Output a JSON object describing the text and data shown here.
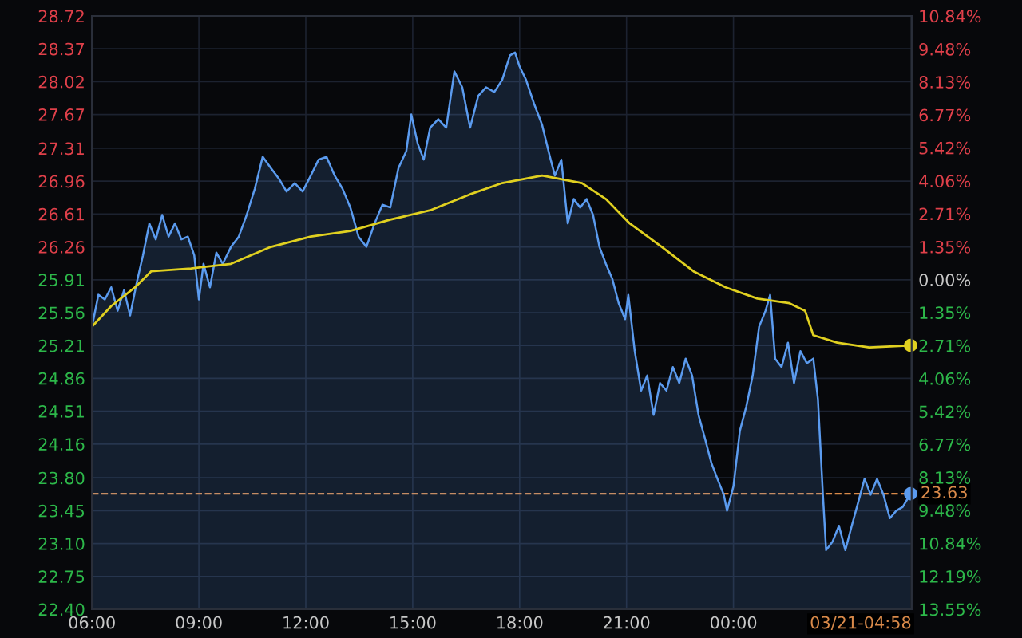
{
  "chart_data": {
    "type": "line",
    "x": [
      6.0,
      6.18,
      6.36,
      6.54,
      6.72,
      6.9,
      7.07,
      7.25,
      7.43,
      7.61,
      7.79,
      7.97,
      8.15,
      8.33,
      8.51,
      8.69,
      8.87,
      9.0,
      9.13,
      9.31,
      9.49,
      9.67,
      9.9,
      10.12,
      10.34,
      10.57,
      10.79,
      11.02,
      11.24,
      11.46,
      11.69,
      11.91,
      12.14,
      12.36,
      12.58,
      12.81,
      13.03,
      13.25,
      13.48,
      13.7,
      13.93,
      14.15,
      14.37,
      14.6,
      14.82,
      14.96,
      15.14,
      15.31,
      15.49,
      15.72,
      15.94,
      16.17,
      16.39,
      16.61,
      16.84,
      17.06,
      17.29,
      17.51,
      17.73,
      17.87,
      18.0,
      18.18,
      18.4,
      18.63,
      18.85,
      18.99,
      19.17,
      19.35,
      19.52,
      19.7,
      19.88,
      20.06,
      20.24,
      20.42,
      20.6,
      20.78,
      20.96,
      21.05,
      21.23,
      21.41,
      21.58,
      21.76,
      21.94,
      22.12,
      22.3,
      22.48,
      22.66,
      22.84,
      23.02,
      23.2,
      23.38,
      23.55,
      23.73,
      23.82,
      24.0,
      24.18,
      24.36,
      24.54,
      24.72,
      24.9,
      25.03,
      25.17,
      25.35,
      25.53,
      25.7,
      25.88,
      26.06,
      26.24,
      26.37,
      26.51,
      26.6,
      26.78,
      26.96,
      27.14,
      27.32,
      27.5,
      27.68,
      27.85,
      28.03,
      28.21,
      28.39,
      28.57,
      28.75,
      28.97
    ],
    "series": [
      {
        "type": "area",
        "color": "#5b9bef",
        "values": [
          25.41,
          25.75,
          25.7,
          25.83,
          25.58,
          25.8,
          25.53,
          25.87,
          26.17,
          26.51,
          26.34,
          26.6,
          26.37,
          26.51,
          26.34,
          26.37,
          26.17,
          25.7,
          26.08,
          25.83,
          26.2,
          26.08,
          26.26,
          26.37,
          26.6,
          26.88,
          27.22,
          27.1,
          26.99,
          26.85,
          26.94,
          26.85,
          27.02,
          27.19,
          27.22,
          27.02,
          26.88,
          26.68,
          26.37,
          26.26,
          26.51,
          26.71,
          26.68,
          27.1,
          27.28,
          27.67,
          27.36,
          27.19,
          27.53,
          27.62,
          27.53,
          28.13,
          27.96,
          27.53,
          27.87,
          27.96,
          27.91,
          28.04,
          28.3,
          28.33,
          28.18,
          28.04,
          27.79,
          27.56,
          27.22,
          27.02,
          27.19,
          26.51,
          26.77,
          26.68,
          26.77,
          26.6,
          26.26,
          26.08,
          25.92,
          25.66,
          25.49,
          25.75,
          25.15,
          24.73,
          24.89,
          24.47,
          24.81,
          24.73,
          24.98,
          24.81,
          25.07,
          24.89,
          24.47,
          24.22,
          23.96,
          23.79,
          23.62,
          23.45,
          23.71,
          24.3,
          24.56,
          24.89,
          25.41,
          25.58,
          25.75,
          25.07,
          24.98,
          25.24,
          24.81,
          25.15,
          25.02,
          25.07,
          24.64,
          23.62,
          23.03,
          23.12,
          23.29,
          23.03,
          23.29,
          23.54,
          23.79,
          23.62,
          23.79,
          23.62,
          23.37,
          23.45,
          23.49,
          23.63
        ]
      },
      {
        "color": "#e0d020",
        "x": [
          6.0,
          6.54,
          7.21,
          7.66,
          8.78,
          9.9,
          11.02,
          12.14,
          13.25,
          14.37,
          15.49,
          16.61,
          17.51,
          18.63,
          19.75,
          20.42,
          21.09,
          21.99,
          22.88,
          23.78,
          24.67,
          25.57,
          26.01,
          26.24,
          26.91,
          27.81,
          28.97
        ],
        "values": [
          25.41,
          25.63,
          25.83,
          26.0,
          26.03,
          26.08,
          26.26,
          26.37,
          26.43,
          26.55,
          26.65,
          26.82,
          26.94,
          27.02,
          26.94,
          26.77,
          26.51,
          26.26,
          26.0,
          25.83,
          25.71,
          25.66,
          25.58,
          25.32,
          25.24,
          25.19,
          25.21
        ]
      }
    ],
    "xlim": [
      6,
      29
    ],
    "xticks": [
      {
        "value": 6,
        "label": "06:00"
      },
      {
        "value": 9,
        "label": "09:00"
      },
      {
        "value": 12,
        "label": "12:00"
      },
      {
        "value": 15,
        "label": "15:00"
      },
      {
        "value": 18,
        "label": "18:00"
      },
      {
        "value": 21,
        "label": "21:00"
      },
      {
        "value": 24,
        "label": "00:00"
      }
    ],
    "ylim": [
      22.4,
      28.72
    ],
    "yticks": [
      {
        "value": 22.4,
        "label": "22.40"
      },
      {
        "value": 22.75,
        "label": "22.75"
      },
      {
        "value": 23.1,
        "label": "23.10"
      },
      {
        "value": 23.45,
        "label": "23.45"
      },
      {
        "value": 23.8,
        "label": "23.80"
      },
      {
        "value": 24.16,
        "label": "24.16"
      },
      {
        "value": 24.51,
        "label": "24.51"
      },
      {
        "value": 24.86,
        "label": "24.86"
      },
      {
        "value": 25.21,
        "label": "25.21"
      },
      {
        "value": 25.56,
        "label": "25.56"
      },
      {
        "value": 25.91,
        "label": "25.91"
      },
      {
        "value": 26.26,
        "label": "26.26"
      },
      {
        "value": 26.61,
        "label": "26.61"
      },
      {
        "value": 26.96,
        "label": "26.96"
      },
      {
        "value": 27.31,
        "label": "27.31"
      },
      {
        "value": 27.67,
        "label": "27.67"
      },
      {
        "value": 28.02,
        "label": "28.02"
      },
      {
        "value": 28.37,
        "label": "28.37"
      },
      {
        "value": 28.72,
        "label": "28.72"
      }
    ],
    "y2lim": [
      -13.55,
      10.84
    ],
    "y2ticks": [
      {
        "value": -13.55,
        "label": "13.55%"
      },
      {
        "value": -12.19,
        "label": "12.19%"
      },
      {
        "value": -10.84,
        "label": "10.84%"
      },
      {
        "value": -9.48,
        "label": "9.48%"
      },
      {
        "value": -8.13,
        "label": "8.13%"
      },
      {
        "value": -6.77,
        "label": "6.77%"
      },
      {
        "value": -5.42,
        "label": "5.42%"
      },
      {
        "value": -4.06,
        "label": "4.06%"
      },
      {
        "value": -2.71,
        "label": "2.71%"
      },
      {
        "value": -1.35,
        "label": "1.35%"
      },
      {
        "value": 0,
        "label": "0.00%"
      },
      {
        "value": 1.35,
        "label": "1.35%"
      },
      {
        "value": 2.71,
        "label": "2.71%"
      },
      {
        "value": 4.06,
        "label": "4.06%"
      },
      {
        "value": 5.42,
        "label": "5.42%"
      },
      {
        "value": 6.77,
        "label": "6.77%"
      },
      {
        "value": 8.13,
        "label": "8.13%"
      },
      {
        "value": 9.48,
        "label": "9.48%"
      },
      {
        "value": 10.84,
        "label": "10.84%"
      }
    ],
    "ref_lines": [
      {
        "axis": "y",
        "value": 23.63,
        "label": "23.63",
        "color": "#d98a4a",
        "line_style": "dashed"
      }
    ],
    "annotations": [
      "03/21-04:58"
    ],
    "grid": true
  }
}
